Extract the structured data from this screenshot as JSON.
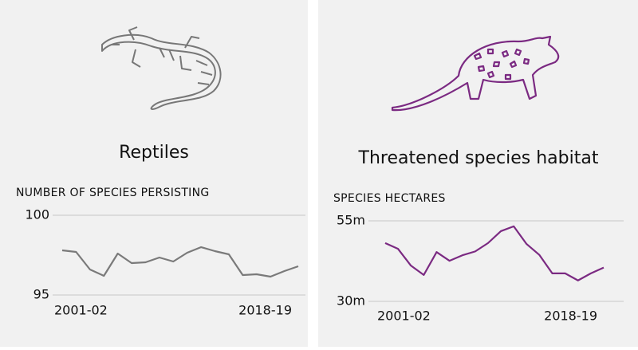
{
  "chart_data": [
    {
      "type": "line",
      "title": "Reptiles",
      "ylabel": "NUMBER OF SPECIES PERSISTING",
      "categories": [
        "2001-02",
        null,
        null,
        null,
        null,
        null,
        null,
        null,
        null,
        null,
        null,
        null,
        null,
        null,
        null,
        null,
        null,
        "2018-19"
      ],
      "values": [
        97.8,
        97.7,
        96.6,
        96.2,
        97.6,
        97.0,
        97.05,
        97.35,
        97.1,
        97.65,
        98.0,
        97.75,
        97.55,
        96.25,
        96.3,
        96.15,
        96.5,
        96.8
      ],
      "color": "#7a7a7a",
      "ylim": [
        95,
        100
      ],
      "yticks": [
        95,
        100
      ],
      "grid": true
    },
    {
      "type": "line",
      "title": "Threatened species habitat",
      "ylabel": "SPECIES HECTARES",
      "categories": [
        "2001-02",
        null,
        null,
        null,
        null,
        null,
        null,
        null,
        null,
        null,
        null,
        null,
        null,
        null,
        null,
        null,
        null,
        "2018-19"
      ],
      "values": [
        48.1,
        46.3,
        41.1,
        38.2,
        45.3,
        42.6,
        44.3,
        45.5,
        48.1,
        51.8,
        53.3,
        47.8,
        44.4,
        38.7,
        38.7,
        36.5,
        38.7,
        40.5
      ],
      "color": "#7b2a82",
      "ylim": [
        30,
        55
      ],
      "yticks": [
        {
          "value": 30,
          "label": "30m"
        },
        {
          "value": 55,
          "label": "55m"
        }
      ],
      "grid": true
    }
  ]
}
